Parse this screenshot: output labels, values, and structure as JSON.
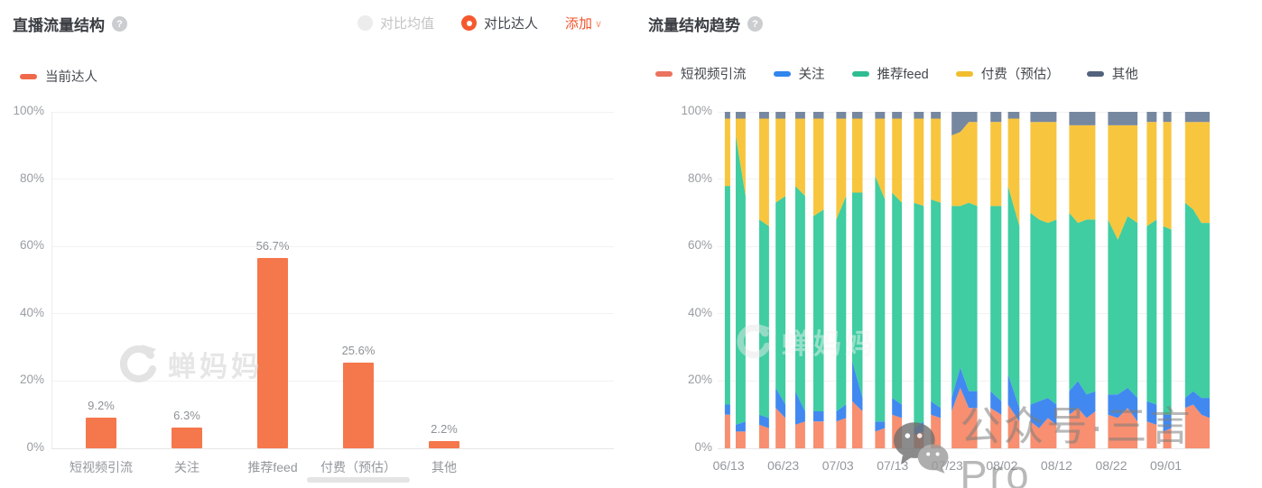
{
  "left_panel": {
    "title": "直播流量结构",
    "help_label": "?",
    "controls": {
      "compare_avg_label": "对比均值",
      "compare_talent_label": "对比达人",
      "add_label": "添加",
      "add_chevron": "∨"
    },
    "legend": [
      {
        "label": "当前达人",
        "swatch": "#f0694a"
      }
    ]
  },
  "right_panel": {
    "title": "流量结构趋势",
    "help_label": "?"
  },
  "watermarks": {
    "chanmama_text": "蝉妈妈",
    "bottom_right_text": "公众号·三言Pro"
  },
  "colors": {
    "accent_orange": "#f5592f",
    "bar_orange": "#f5774c",
    "axis_text": "#9a9da3"
  },
  "chart_data": [
    {
      "type": "bar",
      "title": "直播流量结构",
      "series_name": "当前达人",
      "categories": [
        "短视频引流",
        "关注",
        "推荐feed",
        "付费（预估）",
        "其他"
      ],
      "values": [
        9.2,
        6.3,
        56.7,
        25.6,
        2.2
      ],
      "value_labels": [
        "9.2%",
        "6.3%",
        "56.7%",
        "25.6%",
        "2.2%"
      ],
      "bar_color": "#f5774c",
      "xlabel": "",
      "ylabel": "",
      "ylim": [
        0,
        100
      ],
      "yticks": [
        0,
        20,
        40,
        60,
        80,
        100
      ],
      "ytick_labels": [
        "0%",
        "20%",
        "40%",
        "60%",
        "80%",
        "100%"
      ],
      "grid": true,
      "legend_position": "top-left"
    },
    {
      "type": "stacked-area",
      "title": "流量结构趋势",
      "ylim": [
        0,
        100
      ],
      "yticks": [
        0,
        20,
        40,
        60,
        80,
        100
      ],
      "ytick_labels": [
        "0%",
        "20%",
        "40%",
        "60%",
        "80%",
        "100%"
      ],
      "grid": true,
      "legend_position": "top",
      "x_axis": {
        "day_min": -2,
        "day_max": 88,
        "ticks": [
          {
            "day": 0,
            "label": "06/13"
          },
          {
            "day": 10,
            "label": "06/23"
          },
          {
            "day": 20,
            "label": "07/03"
          },
          {
            "day": 30,
            "label": "07/13"
          },
          {
            "day": 40,
            "label": "07/23"
          },
          {
            "day": 50,
            "label": "08/02"
          },
          {
            "day": 60,
            "label": "08/12"
          },
          {
            "day": 70,
            "label": "08/22"
          },
          {
            "day": 80,
            "label": "09/01"
          }
        ]
      },
      "series": [
        {
          "key": "sv",
          "name": "短视频引流",
          "color": "#f78f70",
          "swatch": "#eb7360"
        },
        {
          "key": "f",
          "name": "关注",
          "color": "#4189f0",
          "swatch": "#3186ee"
        },
        {
          "key": "feed",
          "name": "推荐feed",
          "color": "#3fcda1",
          "swatch": "#2ebd92"
        },
        {
          "key": "paid",
          "name": "付费（预估）",
          "color": "#f8c53e",
          "swatch": "#f0be2f"
        },
        {
          "key": "other",
          "name": "其他",
          "color": "#7687a0",
          "swatch": "#52637d"
        }
      ],
      "segments": [
        {
          "days": [
            -0.7,
            0.3
          ],
          "sv": [
            10
          ],
          "f": [
            3
          ],
          "feed": [
            65
          ],
          "paid": [
            20
          ],
          "other": [
            2
          ]
        },
        {
          "days": [
            1.3,
            3.1
          ],
          "sv": [
            5,
            5
          ],
          "f": [
            2,
            3
          ],
          "feed": [
            86,
            67
          ],
          "paid": [
            5,
            23
          ],
          "other": [
            2,
            2
          ]
        },
        {
          "days": [
            5.6,
            7.4
          ],
          "sv": [
            7,
            6
          ],
          "f": [
            3,
            3
          ],
          "feed": [
            58,
            57
          ],
          "paid": [
            30,
            32
          ],
          "other": [
            2,
            2
          ]
        },
        {
          "days": [
            8.6,
            10.4
          ],
          "sv": [
            12,
            9
          ],
          "f": [
            6,
            4
          ],
          "feed": [
            55,
            62
          ],
          "paid": [
            25,
            23
          ],
          "other": [
            2,
            2
          ]
        },
        {
          "days": [
            12.2,
            14.0
          ],
          "sv": [
            7,
            8
          ],
          "f": [
            10,
            3
          ],
          "feed": [
            61,
            64
          ],
          "paid": [
            20,
            23
          ],
          "other": [
            2,
            2
          ]
        },
        {
          "days": [
            15.5,
            17.4
          ],
          "sv": [
            8,
            8
          ],
          "f": [
            3,
            3
          ],
          "feed": [
            58,
            60
          ],
          "paid": [
            29,
            27
          ],
          "other": [
            2,
            2
          ]
        },
        {
          "days": [
            19.7,
            21.5
          ],
          "sv": [
            8,
            9
          ],
          "f": [
            3,
            4
          ],
          "feed": [
            57,
            62
          ],
          "paid": [
            30,
            23
          ],
          "other": [
            2,
            2
          ]
        },
        {
          "days": [
            22.6,
            24.5
          ],
          "sv": [
            14,
            11
          ],
          "f": [
            12,
            4
          ],
          "feed": [
            50,
            61
          ],
          "paid": [
            22,
            22
          ],
          "other": [
            2,
            2
          ]
        },
        {
          "days": [
            26.8,
            28.6
          ],
          "sv": [
            5,
            6
          ],
          "f": [
            3,
            2
          ],
          "feed": [
            73,
            66
          ],
          "paid": [
            17,
            24
          ],
          "other": [
            2,
            2
          ]
        },
        {
          "days": [
            29.9,
            31.7
          ],
          "sv": [
            10,
            9
          ],
          "f": [
            5,
            4
          ],
          "feed": [
            61,
            60
          ],
          "paid": [
            22,
            25
          ],
          "other": [
            2,
            2
          ]
        },
        {
          "days": [
            33.9,
            35.7
          ],
          "sv": [
            4,
            5
          ],
          "f": [
            2,
            3
          ],
          "feed": [
            67,
            64
          ],
          "paid": [
            25,
            26
          ],
          "other": [
            2,
            2
          ]
        },
        {
          "days": [
            37.0,
            38.8
          ],
          "sv": [
            10,
            9
          ],
          "f": [
            4,
            3
          ],
          "feed": [
            60,
            61
          ],
          "paid": [
            24,
            25
          ],
          "other": [
            2,
            2
          ]
        },
        {
          "days": [
            40.8,
            45.5
          ],
          "sv": [
            11,
            18,
            12,
            12
          ],
          "f": [
            4,
            6,
            5,
            5
          ],
          "feed": [
            57,
            48,
            56,
            55
          ],
          "paid": [
            21,
            22,
            24,
            25
          ],
          "other": [
            7,
            6,
            3,
            3
          ]
        },
        {
          "days": [
            47.9,
            49.9
          ],
          "sv": [
            12,
            10
          ],
          "f": [
            5,
            4
          ],
          "feed": [
            55,
            58
          ],
          "paid": [
            25,
            25
          ],
          "other": [
            3,
            3
          ]
        },
        {
          "days": [
            51.1,
            53.2
          ],
          "sv": [
            13,
            8
          ],
          "f": [
            9,
            4
          ],
          "feed": [
            56,
            54
          ],
          "paid": [
            20,
            32
          ],
          "other": [
            2,
            2
          ]
        },
        {
          "days": [
            55.2,
            60.0
          ],
          "sv": [
            8,
            6,
            9,
            7
          ],
          "f": [
            5,
            8,
            6,
            6
          ],
          "feed": [
            57,
            54,
            52,
            55
          ],
          "paid": [
            27,
            29,
            30,
            29
          ],
          "other": [
            3,
            3,
            3,
            3
          ]
        },
        {
          "days": [
            62.3,
            67.1
          ],
          "sv": [
            10,
            12,
            9,
            11
          ],
          "f": [
            7,
            8,
            7,
            6
          ],
          "feed": [
            53,
            47,
            52,
            51
          ],
          "paid": [
            26,
            29,
            28,
            28
          ],
          "other": [
            4,
            4,
            4,
            4
          ]
        },
        {
          "days": [
            69.4,
            74.8
          ],
          "sv": [
            10,
            9,
            12,
            8
          ],
          "f": [
            6,
            7,
            6,
            7
          ],
          "feed": [
            52,
            46,
            51,
            52
          ],
          "paid": [
            28,
            34,
            27,
            29
          ],
          "other": [
            4,
            4,
            4,
            4
          ]
        },
        {
          "days": [
            76.5,
            78.3
          ],
          "sv": [
            8,
            7
          ],
          "f": [
            6,
            6
          ],
          "feed": [
            52,
            55
          ],
          "paid": [
            31,
            29
          ],
          "other": [
            3,
            3
          ]
        },
        {
          "days": [
            79.5,
            81.0
          ],
          "sv": [
            5,
            6
          ],
          "f": [
            5,
            4
          ],
          "feed": [
            56,
            55
          ],
          "paid": [
            31,
            32
          ],
          "other": [
            3,
            3
          ]
        },
        {
          "days": [
            83.5,
            88.0
          ],
          "sv": [
            12,
            13,
            10,
            9
          ],
          "f": [
            3,
            4,
            5,
            6
          ],
          "feed": [
            58,
            54,
            52,
            52
          ],
          "paid": [
            24,
            26,
            30,
            30
          ],
          "other": [
            3,
            3,
            3,
            3
          ]
        }
      ]
    }
  ]
}
